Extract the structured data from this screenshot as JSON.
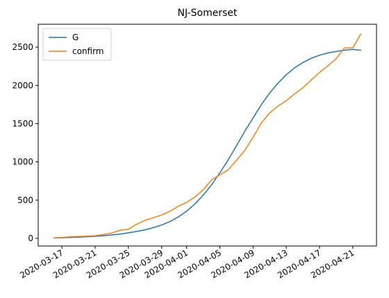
{
  "chart_data": {
    "type": "line",
    "title": "NJ-Somerset",
    "xlabel": "",
    "ylabel": "",
    "x": [
      "2020-03-16",
      "2020-03-17",
      "2020-03-18",
      "2020-03-19",
      "2020-03-20",
      "2020-03-21",
      "2020-03-22",
      "2020-03-23",
      "2020-03-24",
      "2020-03-25",
      "2020-03-26",
      "2020-03-27",
      "2020-03-28",
      "2020-03-29",
      "2020-03-30",
      "2020-03-31",
      "2020-04-01",
      "2020-04-02",
      "2020-04-03",
      "2020-04-04",
      "2020-04-05",
      "2020-04-06",
      "2020-04-07",
      "2020-04-08",
      "2020-04-09",
      "2020-04-10",
      "2020-04-11",
      "2020-04-12",
      "2020-04-13",
      "2020-04-14",
      "2020-04-15",
      "2020-04-16",
      "2020-04-17",
      "2020-04-18",
      "2020-04-19",
      "2020-04-20",
      "2020-04-21",
      "2020-04-22"
    ],
    "series": [
      {
        "name": "G",
        "color": "#1f77b4",
        "values": [
          5,
          8,
          12,
          16,
          21,
          27,
          35,
          45,
          57,
          72,
          90,
          112,
          140,
          175,
          220,
          280,
          355,
          450,
          565,
          700,
          855,
          1025,
          1210,
          1400,
          1575,
          1750,
          1900,
          2030,
          2140,
          2230,
          2300,
          2355,
          2395,
          2425,
          2445,
          2460,
          2470,
          2460
        ]
      },
      {
        "name": "confirm",
        "color": "#ff7f0e",
        "values": [
          8,
          12,
          20,
          25,
          30,
          35,
          50,
          70,
          105,
          120,
          185,
          235,
          270,
          305,
          355,
          420,
          470,
          540,
          635,
          765,
          830,
          895,
          1020,
          1150,
          1320,
          1510,
          1640,
          1730,
          1800,
          1890,
          1970,
          2070,
          2170,
          2255,
          2350,
          2490,
          2490,
          2680
        ]
      }
    ],
    "xticks": [
      "2020-03-17",
      "2020-03-21",
      "2020-03-25",
      "2020-03-29",
      "2020-04-01",
      "2020-04-05",
      "2020-04-09",
      "2020-04-13",
      "2020-04-17",
      "2020-04-21"
    ],
    "yticks": [
      0,
      500,
      1000,
      1500,
      2000,
      2500
    ],
    "ylim": [
      -100,
      2800
    ],
    "grid": false,
    "legend_position": "top-left"
  }
}
